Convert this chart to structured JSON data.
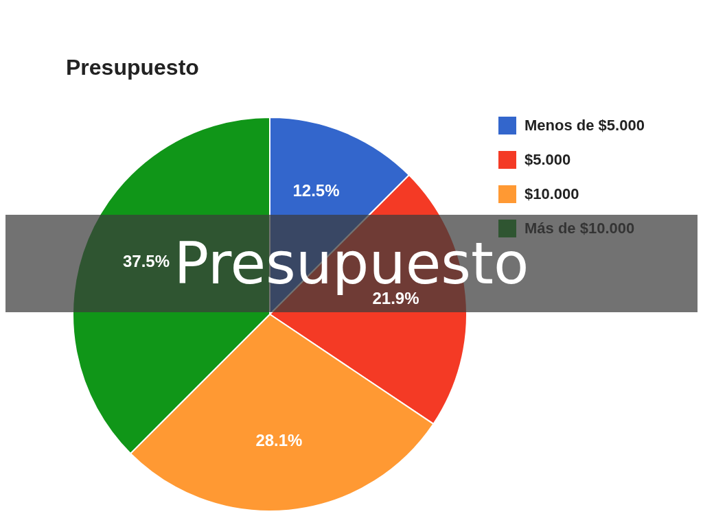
{
  "chart_data": {
    "type": "pie",
    "title": "Presupuesto",
    "categories": [
      "Menos de $5.000",
      "$5.000",
      "$10.000",
      "Más de $10.000"
    ],
    "values": [
      12.5,
      21.9,
      28.1,
      37.5
    ],
    "value_labels": [
      "12.5%",
      "21.9%",
      "28.1%",
      "37.5%"
    ],
    "colors": [
      "#3366cc",
      "#f43a25",
      "#ff9933",
      "#109618"
    ],
    "legend": "top right",
    "annotations": [
      "Presupuesto"
    ]
  }
}
